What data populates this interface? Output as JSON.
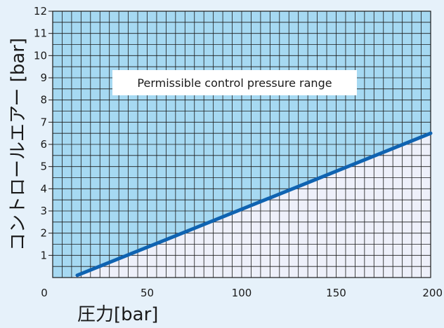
{
  "chart_data": {
    "type": "area",
    "xlabel": "圧力[bar]",
    "ylabel": "コントロールエアー [bar]",
    "xlim": [
      0,
      200
    ],
    "ylim": [
      0,
      12
    ],
    "x_ticks": [
      0,
      50,
      100,
      150,
      200
    ],
    "y_ticks": [
      1,
      2,
      3,
      4,
      5,
      6,
      7,
      8,
      9,
      10,
      11,
      12
    ],
    "grid": true,
    "series": [
      {
        "x": [
          13,
          200
        ],
        "y": [
          0.1,
          6.5
        ]
      }
    ],
    "annotations": [
      {
        "text": "Permissible control pressure range"
      }
    ],
    "colors": {
      "background": "#e6f1fa",
      "permissible_region": "#a6d9f2",
      "lower_region": "#eef0fa",
      "grid": "#1a1a1a",
      "line": "#0f63b1",
      "label_box": "#ffffff"
    }
  }
}
